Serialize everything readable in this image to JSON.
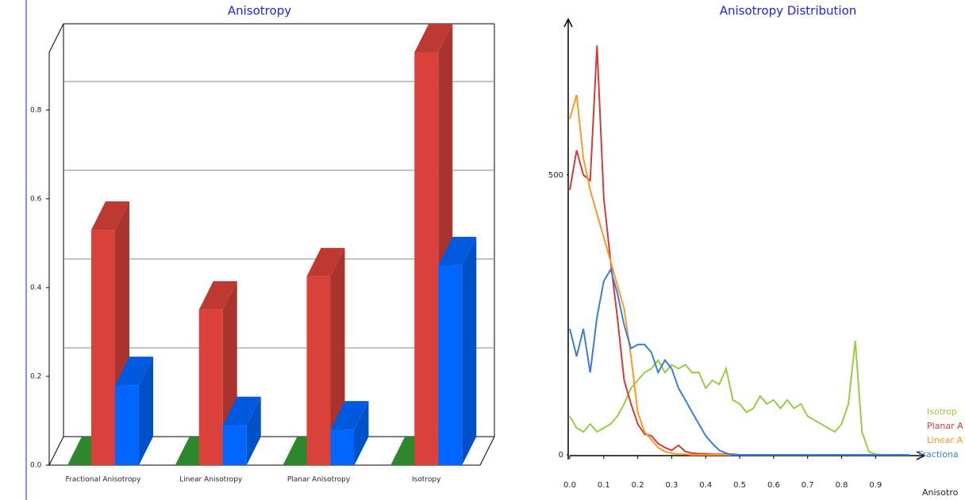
{
  "chart_data": [
    {
      "type": "bar3d",
      "title": "Anisotropy",
      "categories": [
        "Fractional Anisotropy",
        "Linear Anisotropy",
        "Planar Anisotropy",
        "Isotropy"
      ],
      "series": [
        {
          "color": "#339933",
          "values": [
            0,
            0,
            0,
            0
          ]
        },
        {
          "color": "#d9413a",
          "values": [
            0.53,
            0.35,
            0.425,
            0.93
          ]
        },
        {
          "color": "#0066ff",
          "values": [
            0.18,
            0.09,
            0.08,
            0.45
          ]
        }
      ],
      "ylim": [
        0,
        0.93
      ],
      "yticks": [
        {
          "value": 0,
          "label": "0.0"
        },
        0.2,
        0.4,
        0.6,
        0.8
      ],
      "grid": true
    },
    {
      "type": "line",
      "title": "Anisotropy Distribution",
      "x_label": "Anisotro",
      "x": [
        0,
        0.02,
        0.04,
        0.06,
        0.08,
        0.1,
        0.12,
        0.14,
        0.16,
        0.18,
        0.2,
        0.22,
        0.24,
        0.26,
        0.28,
        0.3,
        0.32,
        0.34,
        0.36,
        0.38,
        0.4,
        0.42,
        0.44,
        0.46,
        0.48,
        0.5,
        0.52,
        0.54,
        0.56,
        0.58,
        0.6,
        0.62,
        0.64,
        0.66,
        0.68,
        0.7,
        0.72,
        0.74,
        0.76,
        0.78,
        0.8,
        0.82,
        0.84,
        0.86,
        0.88,
        0.9,
        0.92,
        0.94,
        0.96,
        0.98,
        1.0
      ],
      "series": [
        {
          "name": "Isotrop",
          "color": "#99cc44",
          "values": [
            69,
            48,
            41,
            55,
            41,
            48,
            55,
            69,
            91,
            119,
            133,
            147,
            154,
            169,
            147,
            161,
            154,
            161,
            147,
            147,
            119,
            133,
            126,
            154,
            98,
            91,
            76,
            83,
            105,
            91,
            98,
            83,
            98,
            83,
            91,
            69,
            62,
            55,
            48,
            41,
            55,
            91,
            204,
            41,
            6,
            1,
            0,
            0,
            0,
            0,
            0
          ]
        },
        {
          "name": "Planar A",
          "color": "#d63a3a",
          "values": [
            473,
            544,
            500,
            490,
            731,
            459,
            346,
            246,
            133,
            91,
            55,
            37,
            34,
            20,
            13,
            8,
            17,
            6,
            3,
            2,
            2,
            1,
            1,
            1,
            1,
            0,
            0,
            0,
            0,
            0,
            0,
            0,
            0,
            0,
            0,
            0,
            0,
            0,
            0,
            0,
            0,
            0,
            0,
            0,
            0,
            0,
            0,
            0,
            0,
            0,
            0
          ]
        },
        {
          "name": "Linear A",
          "color": "#ff9922",
          "values": [
            600,
            643,
            530,
            473,
            430,
            388,
            346,
            303,
            261,
            176,
            76,
            41,
            27,
            13,
            6,
            3,
            1,
            1,
            0,
            0,
            0,
            0,
            0,
            0,
            0,
            0,
            0,
            0,
            0,
            0,
            0,
            0,
            0,
            0,
            0,
            0,
            0,
            0,
            0,
            0,
            0,
            0,
            0,
            0,
            0,
            0,
            0,
            0,
            0,
            0,
            0
          ]
        },
        {
          "name": "Fractiona",
          "color": "#3a7fd5",
          "values": [
            225,
            176,
            225,
            147,
            246,
            310,
            331,
            289,
            232,
            190,
            197,
            197,
            183,
            147,
            169,
            154,
            119,
            98,
            76,
            55,
            34,
            20,
            8,
            3,
            0,
            0,
            0,
            0,
            0,
            0,
            0,
            0,
            0,
            0,
            0,
            0,
            0,
            0,
            0,
            0,
            0,
            0,
            0,
            0,
            0,
            0,
            0,
            0,
            0,
            0,
            0
          ]
        }
      ],
      "xlim": [
        0,
        1.03
      ],
      "ylim": [
        0,
        770
      ],
      "xticks": [
        {
          "value": 0,
          "label": "0.0"
        },
        0.1,
        0.2,
        0.3,
        0.4,
        0.5,
        0.6,
        0.7,
        0.8,
        0.9
      ],
      "yticks": [
        0,
        500
      ]
    }
  ]
}
